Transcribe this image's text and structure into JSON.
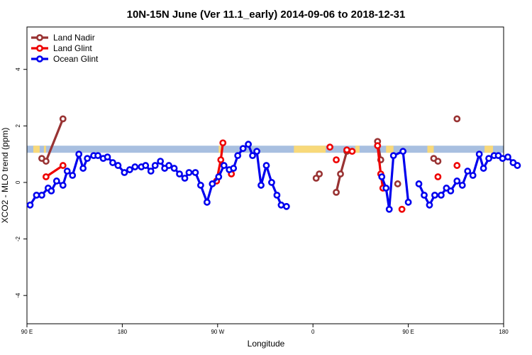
{
  "chart_data": {
    "type": "line",
    "title": "10N-15N June (Ver 11.1_early)   2014-09-06 to 2018-12-31",
    "xlabel": "Longitude",
    "ylabel": "XCO2 - MLO trend (ppm)",
    "xlim": [
      90,
      450
    ],
    "ylim": [
      -5,
      5.5
    ],
    "x_ticks": [
      {
        "value": 90,
        "label": "90 E"
      },
      {
        "value": 180,
        "label": "180"
      },
      {
        "value": 270,
        "label": "90 W"
      },
      {
        "value": 360,
        "label": "0"
      },
      {
        "value": 450,
        "label": "90 E"
      },
      {
        "value": 540,
        "label": "180"
      }
    ],
    "x_axis_scale": "longitude plotted continuously; 0 at center, wrapping 90 E to 180",
    "y_ticks": [
      -4,
      -2,
      0,
      2,
      4
    ],
    "grid": false,
    "legend_position": "top-left",
    "land_band": {
      "y_min": 1.05,
      "y_max": 1.3,
      "ocean_color": "#a8bfe0",
      "land_color": "#f8d97a",
      "land_segments": [
        [
          96,
          102
        ],
        [
          106,
          108
        ],
        [
          271,
          273
        ],
        [
          342,
          372
        ],
        [
          400,
          404
        ],
        [
          429,
          436
        ],
        [
          468,
          474
        ],
        [
          522,
          530
        ]
      ]
    },
    "series": [
      {
        "name": "Land Nadir",
        "color": "#993333",
        "points": [
          [
            104,
            0.85
          ],
          [
            108,
            0.75
          ],
          [
            124,
            2.25
          ],
          null,
          [
            363,
            0.15
          ],
          [
            366,
            0.3
          ],
          null,
          [
            382,
            -0.35
          ],
          [
            386,
            0.3
          ],
          [
            392,
            1.1
          ],
          null,
          [
            421,
            1.45
          ],
          [
            424,
            0.8
          ],
          null,
          [
            440,
            -0.05
          ],
          null,
          [
            474,
            0.85
          ],
          [
            478,
            0.75
          ],
          null,
          [
            496,
            2.25
          ]
        ]
      },
      {
        "name": "Land Glint",
        "color": "#ee0000",
        "points": [
          [
            108,
            0.2
          ],
          [
            124,
            0.6
          ],
          null,
          [
            269,
            0.05
          ],
          [
            273,
            0.8
          ],
          [
            275,
            1.4
          ],
          null,
          [
            283,
            0.3
          ],
          null,
          [
            376,
            1.25
          ],
          null,
          [
            382,
            0.8
          ],
          null,
          [
            392,
            1.15
          ],
          [
            397,
            1.1
          ],
          null,
          [
            421,
            1.3
          ],
          [
            424,
            0.3
          ],
          [
            426,
            -0.2
          ],
          null,
          [
            444,
            -0.95
          ],
          null,
          [
            478,
            0.2
          ],
          null,
          [
            496,
            0.6
          ]
        ]
      },
      {
        "name": "Ocean Glint",
        "color": "#0000ee",
        "points": [
          [
            93,
            -0.8
          ],
          [
            99,
            -0.45
          ],
          [
            104,
            -0.45
          ],
          [
            110,
            -0.2
          ],
          [
            113,
            -0.3
          ],
          [
            118,
            0.05
          ],
          [
            124,
            -0.1
          ],
          [
            128,
            0.4
          ],
          [
            133,
            0.25
          ],
          [
            139,
            1.0
          ],
          [
            143,
            0.5
          ],
          [
            147,
            0.85
          ],
          [
            153,
            0.95
          ],
          [
            157,
            0.95
          ],
          [
            162,
            0.85
          ],
          [
            166,
            0.9
          ],
          [
            171,
            0.7
          ],
          [
            176,
            0.6
          ],
          [
            182,
            0.35
          ],
          [
            187,
            0.45
          ],
          [
            192,
            0.55
          ],
          [
            198,
            0.55
          ],
          [
            202,
            0.6
          ],
          [
            207,
            0.4
          ],
          [
            211,
            0.6
          ],
          [
            216,
            0.75
          ],
          [
            220,
            0.5
          ],
          [
            224,
            0.6
          ],
          [
            229,
            0.5
          ],
          [
            234,
            0.3
          ],
          [
            239,
            0.15
          ],
          [
            243,
            0.35
          ],
          [
            249,
            0.35
          ],
          [
            254,
            -0.1
          ],
          [
            260,
            -0.7
          ],
          [
            265,
            -0.05
          ],
          [
            271,
            0.2
          ],
          [
            276,
            0.6
          ],
          [
            281,
            0.45
          ],
          [
            285,
            0.5
          ],
          [
            289,
            0.95
          ],
          [
            294,
            1.2
          ],
          [
            299,
            1.35
          ],
          [
            303,
            0.95
          ],
          [
            307,
            1.1
          ],
          [
            311,
            -0.1
          ],
          [
            316,
            0.6
          ],
          [
            321,
            0.0
          ],
          [
            326,
            -0.45
          ],
          [
            330,
            -0.8
          ],
          [
            335,
            -0.85
          ],
          null,
          [
            425,
            0.2
          ],
          [
            429,
            -0.2
          ],
          [
            432,
            -0.95
          ],
          [
            436,
            0.95
          ],
          [
            445,
            1.1
          ],
          [
            450,
            -0.7
          ],
          null,
          [
            460,
            -0.05
          ],
          [
            465,
            -0.45
          ],
          [
            470,
            -0.8
          ],
          [
            475,
            -0.45
          ],
          [
            481,
            -0.45
          ],
          [
            486,
            -0.2
          ],
          [
            490,
            -0.3
          ],
          [
            496,
            0.05
          ],
          [
            501,
            -0.1
          ],
          [
            506,
            0.4
          ],
          [
            511,
            0.25
          ],
          [
            517,
            1.0
          ],
          [
            521,
            0.5
          ],
          [
            526,
            0.85
          ],
          [
            531,
            0.95
          ],
          [
            535,
            0.95
          ],
          [
            539,
            0.85
          ],
          [
            544,
            0.9
          ],
          [
            549,
            0.7
          ],
          [
            553,
            0.6
          ]
        ]
      }
    ]
  }
}
